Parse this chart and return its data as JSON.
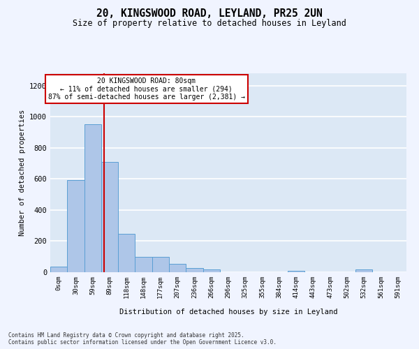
{
  "title_line1": "20, KINGSWOOD ROAD, LEYLAND, PR25 2UN",
  "title_line2": "Size of property relative to detached houses in Leyland",
  "xlabel": "Distribution of detached houses by size in Leyland",
  "ylabel": "Number of detached properties",
  "bar_labels": [
    "0sqm",
    "30sqm",
    "59sqm",
    "89sqm",
    "118sqm",
    "148sqm",
    "177sqm",
    "207sqm",
    "236sqm",
    "266sqm",
    "296sqm",
    "325sqm",
    "355sqm",
    "384sqm",
    "414sqm",
    "443sqm",
    "473sqm",
    "502sqm",
    "532sqm",
    "561sqm",
    "591sqm"
  ],
  "bar_values": [
    35,
    595,
    950,
    710,
    245,
    100,
    97,
    52,
    27,
    18,
    0,
    0,
    0,
    0,
    10,
    0,
    0,
    0,
    18,
    0,
    0
  ],
  "bar_color": "#aec6e8",
  "bar_edgecolor": "#5a9fd4",
  "background_color": "#dce8f5",
  "grid_color": "#ffffff",
  "vline_x_index": 2.65,
  "vline_color": "#cc0000",
  "annotation_title": "20 KINGSWOOD ROAD: 80sqm",
  "annotation_line1": "← 11% of detached houses are smaller (294)",
  "annotation_line2": "87% of semi-detached houses are larger (2,381) →",
  "annotation_box_color": "#cc0000",
  "ylim": [
    0,
    1280
  ],
  "yticks": [
    0,
    200,
    400,
    600,
    800,
    1000,
    1200
  ],
  "footer_line1": "Contains HM Land Registry data © Crown copyright and database right 2025.",
  "footer_line2": "Contains public sector information licensed under the Open Government Licence v3.0.",
  "fig_width": 6.0,
  "fig_height": 5.0,
  "fig_bg": "#f0f4ff"
}
